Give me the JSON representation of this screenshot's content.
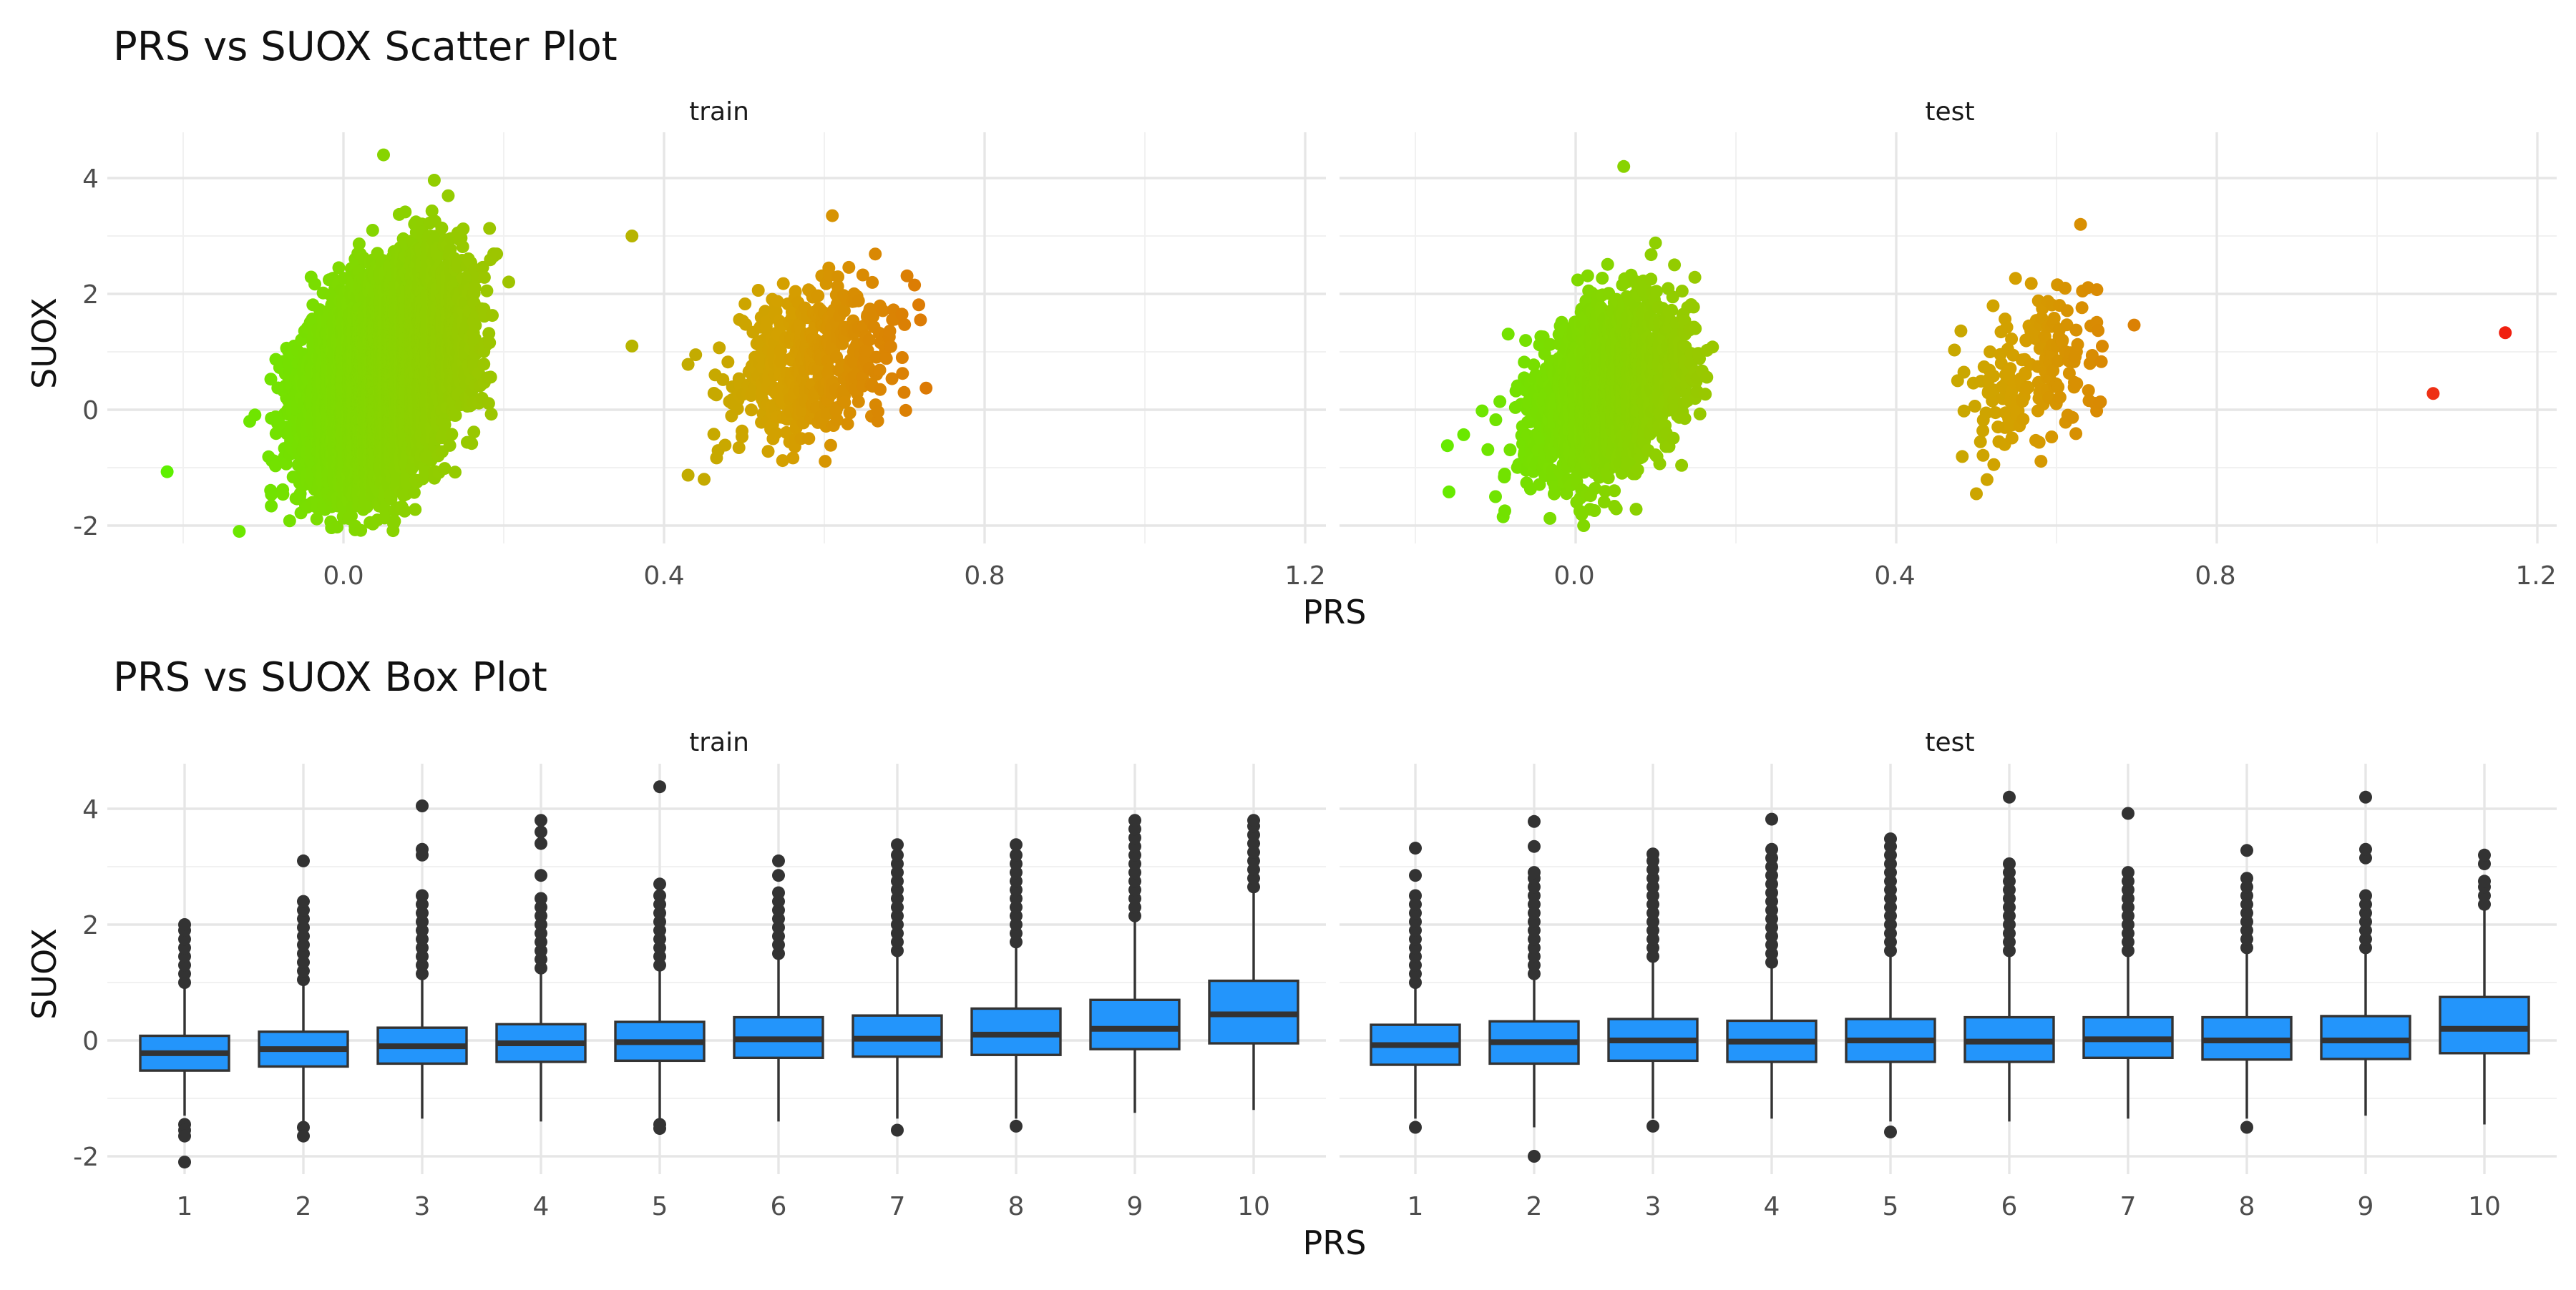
{
  "charts": [
    {
      "title": "PRS vs SUOX Scatter Plot",
      "xlabel": "PRS",
      "ylabel": "SUOX",
      "x_ticks": [
        "0.0",
        "0.4",
        "0.8",
        "1.2"
      ],
      "y_ticks": [
        "-2",
        "0",
        "2",
        "4"
      ],
      "panels": [
        "train",
        "test"
      ]
    },
    {
      "title": "PRS vs SUOX Box Plot",
      "xlabel": "PRS",
      "ylabel": "SUOX",
      "x_ticks": [
        "1",
        "2",
        "3",
        "4",
        "5",
        "6",
        "7",
        "8",
        "9",
        "10"
      ],
      "y_ticks": [
        "-2",
        "0",
        "2",
        "4"
      ],
      "panels": [
        "train",
        "test"
      ]
    }
  ],
  "chart_data": [
    {
      "type": "scatter",
      "title": "PRS vs SUOX Scatter Plot",
      "xlabel": "PRS",
      "ylabel": "SUOX",
      "xlim": [
        -0.25,
        1.22
      ],
      "ylim": [
        -2.2,
        4.5
      ],
      "grid": true,
      "color_scale": {
        "low": "#5ef000",
        "mid": "#d4a000",
        "high": "#f02010"
      },
      "facets": [
        {
          "name": "train",
          "clusters": [
            {
              "x_mean": 0.05,
              "x_sd": 0.045,
              "y_mean": 0.55,
              "y_sd": 0.9,
              "approx_n": 9000,
              "x_range": [
                -0.23,
                0.36
              ],
              "y_range": [
                -2.1,
                4.4
              ]
            },
            {
              "x_mean": 0.58,
              "x_sd": 0.055,
              "y_mean": 0.8,
              "y_sd": 0.75,
              "approx_n": 500,
              "x_range": [
                0.42,
                0.73
              ],
              "y_range": [
                -1.2,
                3.4
              ]
            }
          ],
          "outliers": [
            {
              "x": -0.22,
              "y": -1.07
            },
            {
              "x": -0.13,
              "y": -2.1
            },
            {
              "x": 0.05,
              "y": 4.4
            },
            {
              "x": 0.36,
              "y": 3.0
            },
            {
              "x": 0.36,
              "y": 1.1
            },
            {
              "x": 0.43,
              "y": -1.13
            },
            {
              "x": 0.45,
              "y": -1.2
            },
            {
              "x": 0.72,
              "y": 1.55
            },
            {
              "x": 0.61,
              "y": 3.35
            }
          ]
        },
        {
          "name": "test",
          "clusters": [
            {
              "x_mean": 0.04,
              "x_sd": 0.045,
              "y_mean": 0.35,
              "y_sd": 0.75,
              "approx_n": 2500,
              "x_range": [
                -0.16,
                0.28
              ],
              "y_range": [
                -2.0,
                4.2
              ]
            },
            {
              "x_mean": 0.57,
              "x_sd": 0.045,
              "y_mean": 0.6,
              "y_sd": 0.75,
              "approx_n": 180,
              "x_range": [
                0.45,
                0.71
              ],
              "y_range": [
                -1.45,
                3.2
              ]
            }
          ],
          "outliers": [
            {
              "x": 1.07,
              "y": 0.28,
              "color": "#ee3015"
            },
            {
              "x": 1.16,
              "y": 1.33,
              "color": "#f02010"
            },
            {
              "x": 0.63,
              "y": 3.2
            },
            {
              "x": 0.5,
              "y": -1.45
            },
            {
              "x": -0.16,
              "y": -0.62
            },
            {
              "x": -0.1,
              "y": -1.5
            },
            {
              "x": 0.01,
              "y": -2.0
            },
            {
              "x": 0.06,
              "y": 4.2
            }
          ]
        }
      ]
    },
    {
      "type": "box",
      "title": "PRS vs SUOX Box Plot",
      "xlabel": "PRS",
      "ylabel": "SUOX",
      "categories": [
        "1",
        "2",
        "3",
        "4",
        "5",
        "6",
        "7",
        "8",
        "9",
        "10"
      ],
      "ylim": [
        -2.2,
        4.5
      ],
      "grid": true,
      "box_color": "#2395fb",
      "facets": [
        {
          "name": "train",
          "boxes": [
            {
              "lower_whisker": -1.3,
              "q1": -0.52,
              "median": -0.22,
              "q3": 0.08,
              "upper_whisker": 0.95,
              "outliers_high": [
                1.0,
                1.15,
                1.3,
                1.45,
                1.6,
                1.75,
                1.9,
                2.0
              ],
              "outliers_low": [
                -1.45,
                -1.55,
                -1.65,
                -2.1
              ]
            },
            {
              "lower_whisker": -1.4,
              "q1": -0.45,
              "median": -0.15,
              "q3": 0.15,
              "upper_whisker": 1.0,
              "outliers_high": [
                1.05,
                1.2,
                1.35,
                1.5,
                1.65,
                1.8,
                1.95,
                2.1,
                2.25,
                2.4,
                3.1
              ],
              "outliers_low": [
                -1.5,
                -1.65
              ]
            },
            {
              "lower_whisker": -1.35,
              "q1": -0.4,
              "median": -0.1,
              "q3": 0.22,
              "upper_whisker": 1.1,
              "outliers_high": [
                1.15,
                1.3,
                1.45,
                1.6,
                1.75,
                1.9,
                2.05,
                2.2,
                2.35,
                2.5,
                3.2,
                3.3,
                4.05
              ],
              "outliers_low": []
            },
            {
              "lower_whisker": -1.4,
              "q1": -0.37,
              "median": -0.05,
              "q3": 0.28,
              "upper_whisker": 1.2,
              "outliers_high": [
                1.25,
                1.4,
                1.55,
                1.7,
                1.85,
                2.0,
                2.15,
                2.3,
                2.45,
                2.85,
                3.4,
                3.6,
                3.8
              ],
              "outliers_low": []
            },
            {
              "lower_whisker": -1.4,
              "q1": -0.35,
              "median": -0.03,
              "q3": 0.32,
              "upper_whisker": 1.25,
              "outliers_high": [
                1.3,
                1.45,
                1.6,
                1.75,
                1.9,
                2.05,
                2.2,
                2.35,
                2.5,
                2.7,
                4.38
              ],
              "outliers_low": [
                -1.45,
                -1.52
              ]
            },
            {
              "lower_whisker": -1.4,
              "q1": -0.3,
              "median": 0.02,
              "q3": 0.4,
              "upper_whisker": 1.45,
              "outliers_high": [
                1.5,
                1.65,
                1.8,
                1.95,
                2.1,
                2.25,
                2.4,
                2.55,
                2.85,
                3.1
              ],
              "outliers_low": []
            },
            {
              "lower_whisker": -1.35,
              "q1": -0.28,
              "median": 0.03,
              "q3": 0.43,
              "upper_whisker": 1.5,
              "outliers_high": [
                1.55,
                1.7,
                1.85,
                2.0,
                2.15,
                2.3,
                2.45,
                2.6,
                2.75,
                2.9,
                3.05,
                3.2,
                3.38
              ],
              "outliers_low": [
                -1.55
              ]
            },
            {
              "lower_whisker": -1.35,
              "q1": -0.25,
              "median": 0.1,
              "q3": 0.55,
              "upper_whisker": 1.65,
              "outliers_high": [
                1.7,
                1.85,
                2.0,
                2.15,
                2.3,
                2.45,
                2.6,
                2.75,
                2.9,
                3.05,
                3.2,
                3.38
              ],
              "outliers_low": [
                -1.48
              ]
            },
            {
              "lower_whisker": -1.25,
              "q1": -0.15,
              "median": 0.2,
              "q3": 0.7,
              "upper_whisker": 2.1,
              "outliers_high": [
                2.15,
                2.3,
                2.45,
                2.6,
                2.75,
                2.9,
                3.05,
                3.2,
                3.35,
                3.5,
                3.65,
                3.8
              ],
              "outliers_low": []
            },
            {
              "lower_whisker": -1.2,
              "q1": -0.05,
              "median": 0.45,
              "q3": 1.03,
              "upper_whisker": 2.6,
              "outliers_high": [
                2.65,
                2.8,
                2.95,
                3.1,
                3.25,
                3.4,
                3.55,
                3.7,
                3.8
              ],
              "outliers_low": []
            }
          ]
        },
        {
          "name": "test",
          "boxes": [
            {
              "lower_whisker": -1.35,
              "q1": -0.42,
              "median": -0.08,
              "q3": 0.27,
              "upper_whisker": 0.95,
              "outliers_high": [
                1.0,
                1.15,
                1.3,
                1.45,
                1.6,
                1.75,
                1.9,
                2.05,
                2.2,
                2.35,
                2.5,
                2.85,
                3.32
              ],
              "outliers_low": [
                -1.5
              ]
            },
            {
              "lower_whisker": -1.5,
              "q1": -0.4,
              "median": -0.03,
              "q3": 0.33,
              "upper_whisker": 1.1,
              "outliers_high": [
                1.15,
                1.3,
                1.45,
                1.6,
                1.75,
                1.9,
                2.05,
                2.2,
                2.35,
                2.5,
                2.65,
                2.8,
                2.9,
                3.35,
                3.78
              ],
              "outliers_low": [
                -2.0
              ]
            },
            {
              "lower_whisker": -1.35,
              "q1": -0.35,
              "median": 0.0,
              "q3": 0.37,
              "upper_whisker": 1.4,
              "outliers_high": [
                1.45,
                1.6,
                1.75,
                1.9,
                2.05,
                2.2,
                2.35,
                2.5,
                2.65,
                2.8,
                2.95,
                3.1,
                3.22
              ],
              "outliers_low": [
                -1.48
              ]
            },
            {
              "lower_whisker": -1.35,
              "q1": -0.37,
              "median": -0.02,
              "q3": 0.34,
              "upper_whisker": 1.3,
              "outliers_high": [
                1.35,
                1.5,
                1.65,
                1.8,
                1.95,
                2.1,
                2.25,
                2.4,
                2.55,
                2.7,
                2.85,
                3.0,
                3.15,
                3.3,
                3.82
              ],
              "outliers_low": []
            },
            {
              "lower_whisker": -1.4,
              "q1": -0.37,
              "median": 0.0,
              "q3": 0.37,
              "upper_whisker": 1.5,
              "outliers_high": [
                1.55,
                1.7,
                1.85,
                2.0,
                2.15,
                2.3,
                2.45,
                2.6,
                2.75,
                2.9,
                3.05,
                3.2,
                3.35,
                3.48
              ],
              "outliers_low": [
                -1.58
              ]
            },
            {
              "lower_whisker": -1.4,
              "q1": -0.37,
              "median": -0.02,
              "q3": 0.4,
              "upper_whisker": 1.5,
              "outliers_high": [
                1.55,
                1.7,
                1.85,
                2.0,
                2.15,
                2.3,
                2.45,
                2.6,
                2.75,
                2.9,
                3.05,
                4.2
              ],
              "outliers_low": []
            },
            {
              "lower_whisker": -1.35,
              "q1": -0.3,
              "median": 0.02,
              "q3": 0.4,
              "upper_whisker": 1.5,
              "outliers_high": [
                1.55,
                1.7,
                1.85,
                2.0,
                2.15,
                2.3,
                2.45,
                2.6,
                2.75,
                2.9,
                3.92
              ],
              "outliers_low": []
            },
            {
              "lower_whisker": -1.35,
              "q1": -0.33,
              "median": 0.0,
              "q3": 0.4,
              "upper_whisker": 1.55,
              "outliers_high": [
                1.6,
                1.75,
                1.9,
                2.05,
                2.2,
                2.35,
                2.5,
                2.65,
                2.8,
                3.28
              ],
              "outliers_low": [
                -1.5
              ]
            },
            {
              "lower_whisker": -1.3,
              "q1": -0.32,
              "median": 0.0,
              "q3": 0.42,
              "upper_whisker": 1.55,
              "outliers_high": [
                1.6,
                1.75,
                1.9,
                2.05,
                2.2,
                2.35,
                2.5,
                3.15,
                3.3,
                4.2
              ],
              "outliers_low": []
            },
            {
              "lower_whisker": -1.45,
              "q1": -0.22,
              "median": 0.2,
              "q3": 0.75,
              "upper_whisker": 2.3,
              "outliers_high": [
                2.35,
                2.5,
                2.65,
                2.75,
                3.05,
                3.2
              ],
              "outliers_low": []
            }
          ]
        }
      ]
    }
  ]
}
